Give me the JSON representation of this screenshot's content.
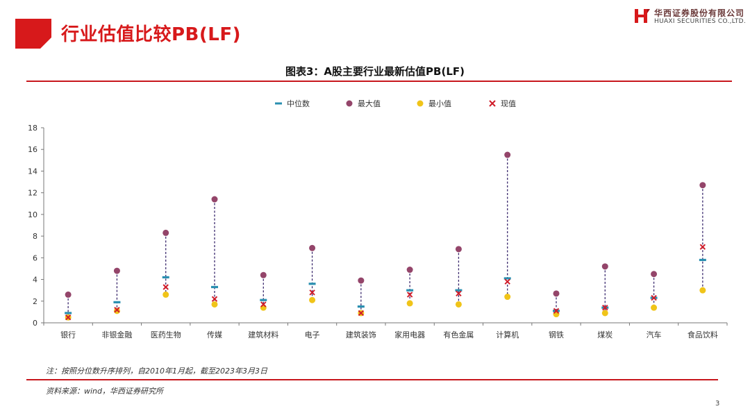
{
  "header": {
    "title": "行业估值比较PB(LF)",
    "company_cn": "华西证券股份有限公司",
    "company_en": "HUAXI SECURITIES CO.,LTD."
  },
  "figure_title": "图表3：A股主要行业最新估值PB(LF)",
  "legend": [
    {
      "label": "中位数",
      "marker": "dash",
      "color": "#2a8fb0"
    },
    {
      "label": "最大值",
      "marker": "circle",
      "color": "#94456a"
    },
    {
      "label": "最小值",
      "marker": "circle",
      "color": "#f0c419"
    },
    {
      "label": "现值",
      "marker": "cross",
      "color": "#d01d2a"
    }
  ],
  "chart_data": {
    "type": "scatter",
    "title": "",
    "xlabel": "",
    "ylabel": "",
    "ylim": [
      0,
      18
    ],
    "yticks": [
      0,
      2,
      4,
      6,
      8,
      10,
      12,
      14,
      16,
      18
    ],
    "grid": false,
    "legend_position": "top",
    "categories": [
      "银行",
      "非银金融",
      "医药生物",
      "传媒",
      "建筑材料",
      "电子",
      "建筑装饰",
      "家用电器",
      "有色金属",
      "计算机",
      "钢铁",
      "煤炭",
      "汽车",
      "食品饮料"
    ],
    "series": [
      {
        "name": "中位数",
        "values": [
          0.9,
          1.9,
          4.2,
          3.3,
          2.1,
          3.6,
          1.5,
          3.0,
          3.0,
          4.1,
          1.1,
          1.4,
          2.3,
          5.8
        ]
      },
      {
        "name": "最大值",
        "values": [
          2.6,
          4.8,
          8.3,
          11.4,
          4.4,
          6.9,
          3.9,
          4.9,
          6.8,
          15.5,
          2.7,
          5.2,
          4.5,
          12.7
        ]
      },
      {
        "name": "最小值",
        "values": [
          0.5,
          1.1,
          2.6,
          1.7,
          1.4,
          2.1,
          0.9,
          1.8,
          1.7,
          2.4,
          0.8,
          0.9,
          1.4,
          3.0
        ]
      },
      {
        "name": "现值",
        "values": [
          0.5,
          1.2,
          3.3,
          2.2,
          1.7,
          2.8,
          0.9,
          2.6,
          2.7,
          3.8,
          1.1,
          1.4,
          2.3,
          7.0
        ]
      }
    ]
  },
  "note": "注：按照分位数升序排列，自2010年1月起，截至2023年3月3日",
  "source": "资料来源：wind，华西证券研究所",
  "page_number": "3",
  "colors": {
    "brand_red": "#d7191b",
    "median": "#2a8fb0",
    "max": "#94456a",
    "min": "#f0c419",
    "current": "#d01d2a",
    "range_line": "#3b2a6e"
  }
}
